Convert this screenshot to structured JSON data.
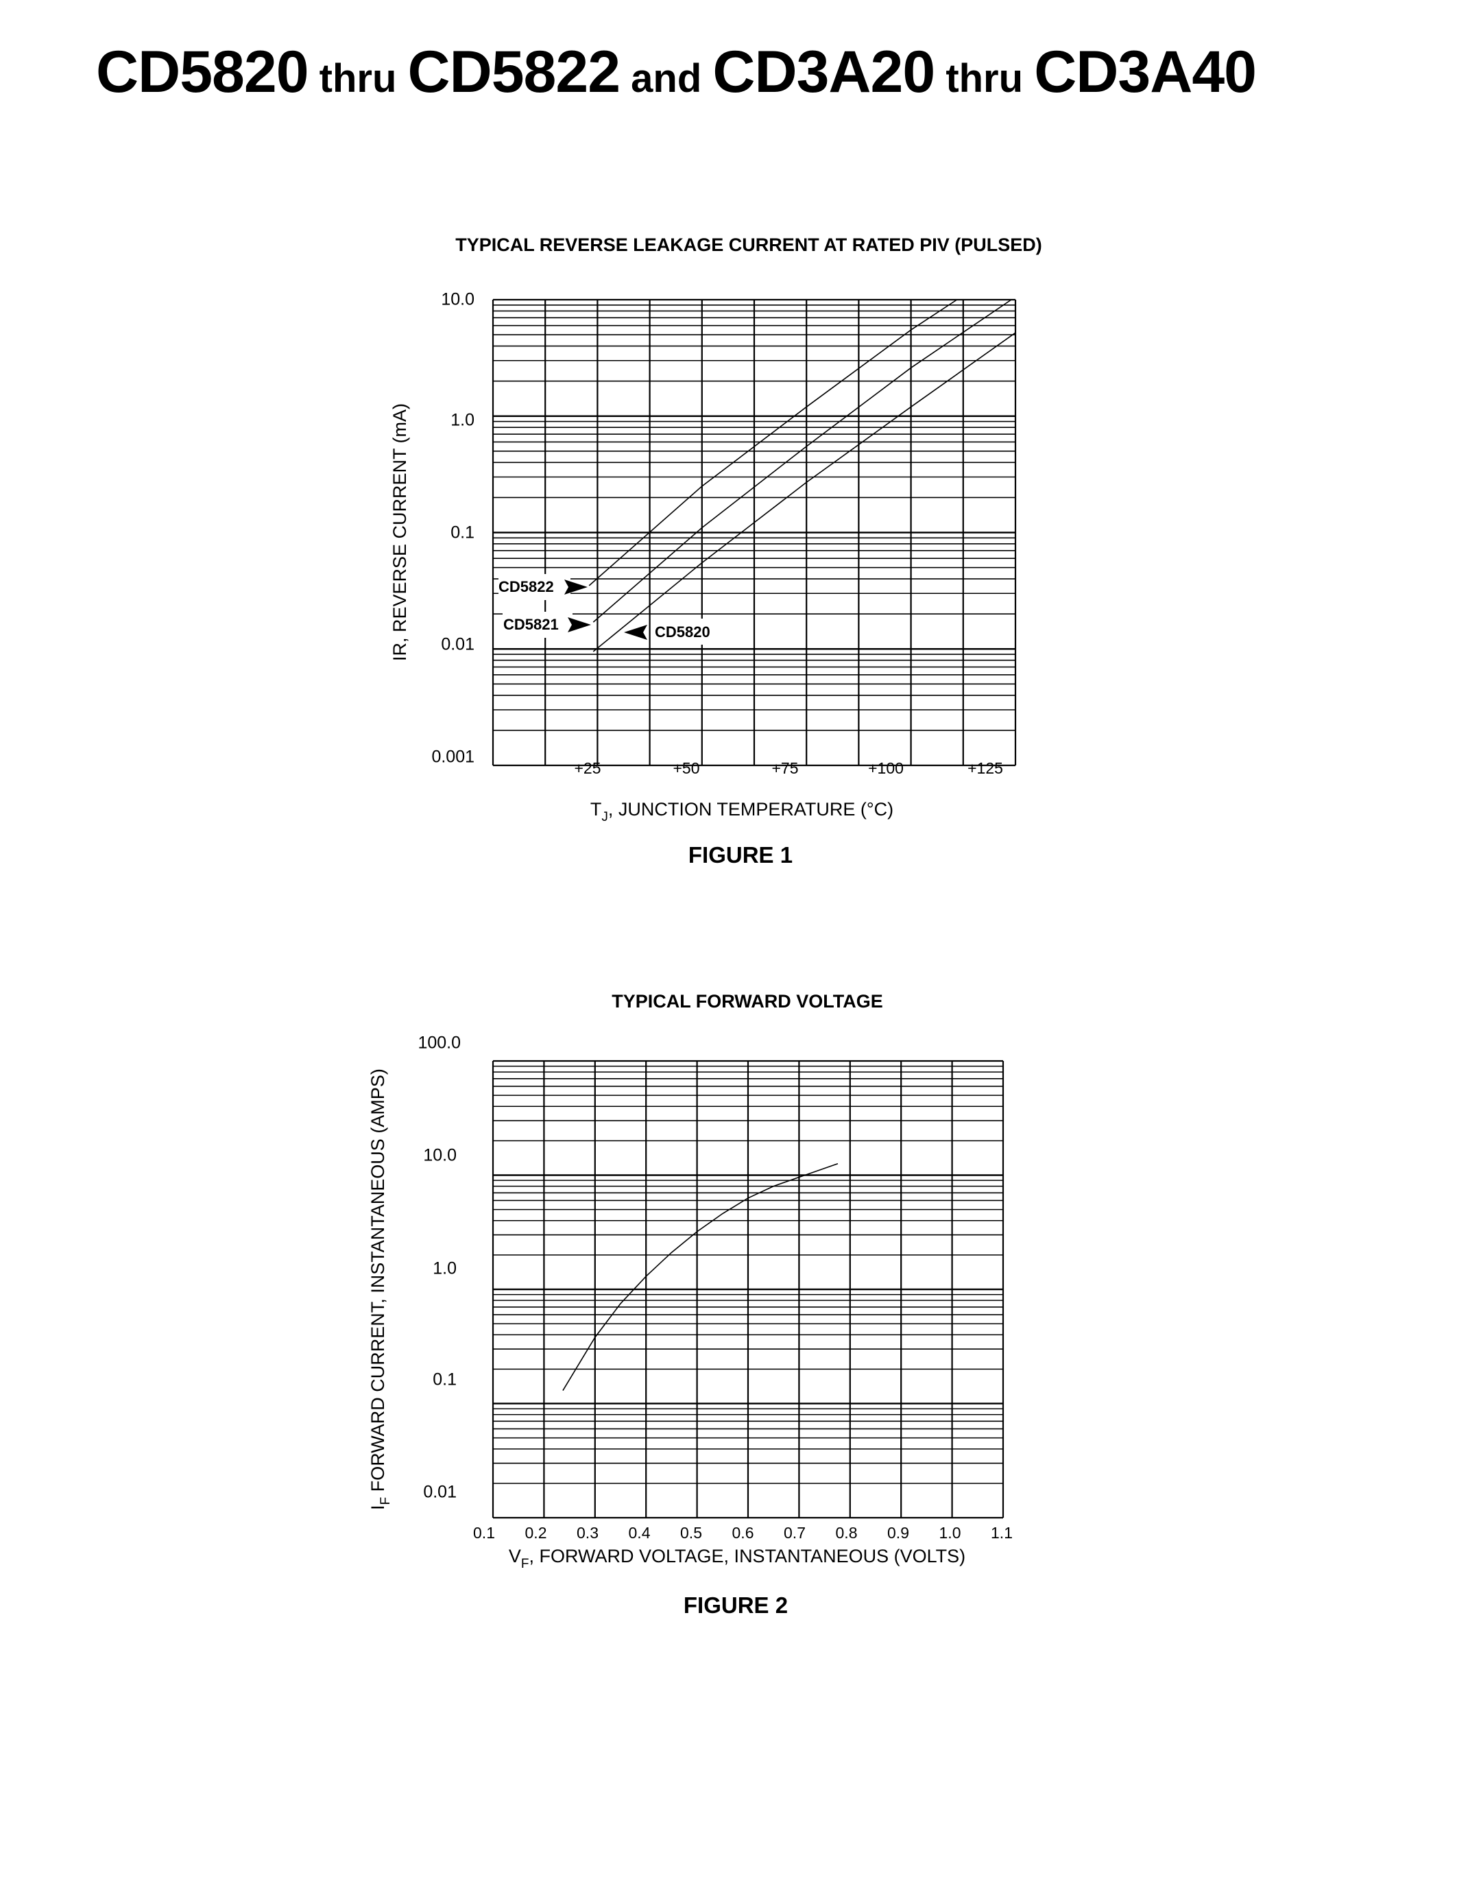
{
  "page": {
    "title_parts": [
      {
        "text": "CD5820",
        "size": "big"
      },
      {
        "text": " thru ",
        "size": "small"
      },
      {
        "text": "CD5822",
        "size": "big"
      },
      {
        "text": " and ",
        "size": "small"
      },
      {
        "text": "CD3A20",
        "size": "big"
      },
      {
        "text": " thru ",
        "size": "small"
      },
      {
        "text": "CD3A40",
        "size": "big"
      }
    ]
  },
  "figure1": {
    "title": "TYPICAL REVERSE LEAKAGE CURRENT AT RATED PIV (PULSED)",
    "caption": "FIGURE 1",
    "ylabel": "IR, REVERSE CURRENT (mA)",
    "xlabel_main": "T",
    "xlabel_sub": "J",
    "xlabel_rest": ", JUNCTION TEMPERATURE (°C)",
    "y_ticks": [
      "10.0",
      "1.0",
      "0.1",
      "0.01",
      "0.001"
    ],
    "x_ticks": [
      "+25",
      "+50",
      "+75",
      "+100",
      "+125"
    ],
    "curve_labels": {
      "cd5822": "CD5822",
      "cd5821": "CD5821",
      "cd5820": "CD5820"
    }
  },
  "figure2": {
    "title": "TYPICAL FORWARD VOLTAGE",
    "caption": "FIGURE 2",
    "ylabel_main": "I",
    "ylabel_sub": "F",
    "ylabel_rest": " FORWARD CURRENT, INSTANTANEOUS (AMPS)",
    "xlabel_main": "V",
    "xlabel_sub": "F",
    "xlabel_rest": ", FORWARD VOLTAGE, INSTANTANEOUS (VOLTS)",
    "y_ticks": [
      "100.0",
      "10.0",
      "1.0",
      "0.1",
      "0.01"
    ],
    "x_ticks": [
      "0.1",
      "0.2",
      "0.3",
      "0.4",
      "0.5",
      "0.6",
      "0.7",
      "0.8",
      "0.9",
      "1.0",
      "1.1"
    ]
  },
  "chart_data": [
    {
      "type": "line",
      "title": "TYPICAL REVERSE LEAKAGE CURRENT AT RATED PIV (PULSED)",
      "xlabel": "TJ, JUNCTION TEMPERATURE (°C)",
      "ylabel": "IR, REVERSE CURRENT (mA)",
      "xlim": [
        0,
        125
      ],
      "ylim": [
        0.001,
        10.0
      ],
      "yscale": "log",
      "grid": true,
      "x_tick_labels": [
        "+25",
        "+50",
        "+75",
        "+100",
        "+125"
      ],
      "y_tick_labels": [
        "10.0",
        "1.0",
        "0.1",
        "0.01",
        "0.001"
      ],
      "legend": "inline arrow labels (left side)",
      "series": [
        {
          "name": "CD5822",
          "x": [
            23,
            50,
            75,
            100,
            111
          ],
          "y": [
            0.035,
            0.25,
            1.2,
            5.5,
            10.0
          ]
        },
        {
          "name": "CD5821",
          "x": [
            24,
            50,
            75,
            100,
            124
          ],
          "y": [
            0.017,
            0.11,
            0.55,
            2.6,
            10.0
          ]
        },
        {
          "name": "CD5820",
          "x": [
            24,
            50,
            75,
            100,
            125
          ],
          "y": [
            0.0095,
            0.055,
            0.27,
            1.2,
            5.2
          ]
        }
      ]
    },
    {
      "type": "line",
      "title": "TYPICAL FORWARD VOLTAGE",
      "xlabel": "VF, FORWARD VOLTAGE, INSTANTANEOUS (VOLTS)",
      "ylabel": "IF FORWARD CURRENT, INSTANTANEOUS (AMPS)",
      "xlim": [
        0.1,
        1.1
      ],
      "ylim": [
        0.01,
        100.0
      ],
      "yscale": "log",
      "grid": true,
      "x_tick_labels": [
        "0.1",
        "0.2",
        "0.3",
        "0.4",
        "0.5",
        "0.6",
        "0.7",
        "0.8",
        "0.9",
        "1.0",
        "1.1"
      ],
      "y_tick_labels": [
        "100.0",
        "10.0",
        "1.0",
        "0.1",
        "0.01"
      ],
      "series": [
        {
          "name": "Typical",
          "x": [
            0.237,
            0.3,
            0.35,
            0.4,
            0.45,
            0.5,
            0.55,
            0.6,
            0.65,
            0.7,
            0.776
          ],
          "y": [
            0.13,
            0.38,
            0.75,
            1.3,
            2.1,
            3.2,
            4.6,
            6.3,
            8.0,
            9.6,
            12.6
          ]
        }
      ]
    }
  ]
}
